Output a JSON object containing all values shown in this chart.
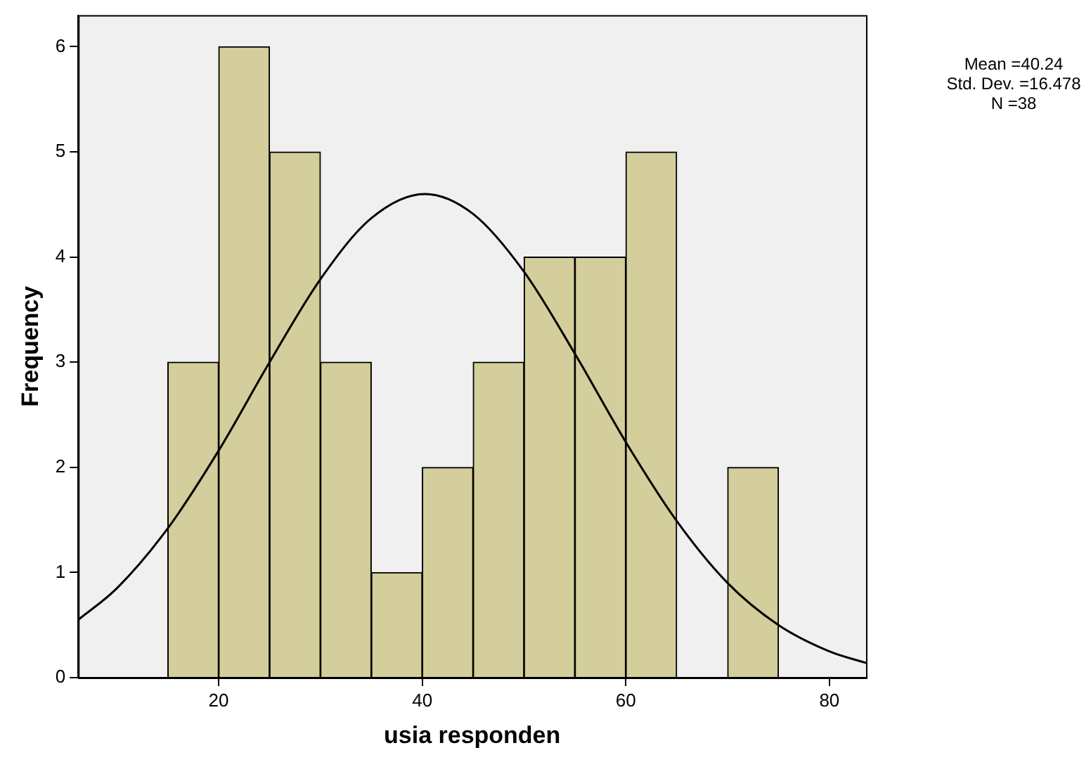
{
  "chart_data": {
    "type": "histogram",
    "xlabel": "usia responden",
    "ylabel": "Frequency",
    "annotations": [
      "Mean =40.24",
      "Std. Dev. =16.478",
      "N =38"
    ],
    "bins": [
      15,
      20,
      25,
      30,
      35,
      40,
      45,
      50,
      55,
      60,
      65,
      70,
      75
    ],
    "values": [
      3,
      6,
      5,
      3,
      1,
      2,
      3,
      4,
      4,
      5,
      0,
      2
    ],
    "color": "#d3ce9b",
    "series": [
      {
        "type": "line",
        "color": "#000000",
        "marker": "none",
        "x": [
          6.2,
          10,
          15,
          20,
          25,
          30,
          35,
          40.24,
          45,
          50,
          55,
          60,
          65,
          70,
          75,
          80,
          83.6
        ],
        "values": [
          0.55,
          0.85,
          1.42,
          2.16,
          3,
          3.79,
          4.37,
          4.6,
          4.41,
          3.86,
          3.08,
          2.24,
          1.49,
          0.9,
          0.5,
          0.25,
          0.14
        ]
      }
    ],
    "xlim": [
      6.2,
      83.6
    ],
    "ylim": [
      0,
      6.3
    ],
    "xticks": [
      20,
      40,
      60,
      80
    ],
    "yticks": [
      0,
      1,
      2,
      3,
      4,
      5,
      6
    ]
  }
}
